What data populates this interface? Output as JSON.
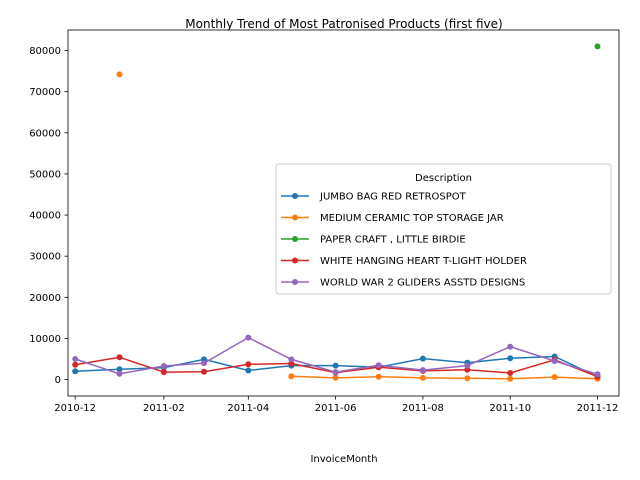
{
  "chart_data": {
    "type": "line",
    "title": "Monthly Trend of Most Patronised Products (first five)",
    "xlabel": "InvoiceMonth",
    "ylabel": "",
    "x": [
      "2010-12",
      "2011-01",
      "2011-02",
      "2011-03",
      "2011-04",
      "2011-05",
      "2011-06",
      "2011-07",
      "2011-08",
      "2011-09",
      "2011-10",
      "2011-11",
      "2011-12"
    ],
    "x_ticks": [
      "2010-12",
      "2011-02",
      "2011-04",
      "2011-06",
      "2011-08",
      "2011-10",
      "2011-12"
    ],
    "y_ticks": [
      0,
      10000,
      20000,
      30000,
      40000,
      50000,
      60000,
      70000,
      80000
    ],
    "xlim": [
      "2010-11-26",
      "2011-12-16"
    ],
    "ylim": [
      -4000,
      85000
    ],
    "grid": false,
    "legend": {
      "title": "Description",
      "position": "center-right"
    },
    "series": [
      {
        "name": "JUMBO BAG RED RETROSPOT",
        "color": "#1f77b4",
        "values": [
          2000,
          2500,
          2900,
          4900,
          2200,
          3400,
          3400,
          3000,
          5100,
          4100,
          5200,
          5600,
          700
        ]
      },
      {
        "name": "MEDIUM CERAMIC TOP STORAGE JAR",
        "color": "#ff7f0e",
        "values": [
          null,
          74200,
          null,
          null,
          null,
          800,
          400,
          700,
          400,
          300,
          200,
          600,
          200
        ]
      },
      {
        "name": "PAPER CRAFT , LITTLE BIRDIE",
        "color": "#2ca02c",
        "values": [
          null,
          null,
          null,
          null,
          null,
          null,
          null,
          null,
          null,
          null,
          null,
          null,
          81000
        ]
      },
      {
        "name": "WHITE HANGING HEART T-LIGHT HOLDER",
        "color": "#d62728",
        "values": [
          3600,
          5400,
          1800,
          1900,
          3700,
          3900,
          1700,
          3000,
          2100,
          2400,
          1600,
          4800,
          700
        ]
      },
      {
        "name": "WORLD WAR 2 GLIDERS ASSTD DESIGNS",
        "color": "#9467bd",
        "values": [
          5000,
          1400,
          3300,
          4000,
          10200,
          4900,
          1800,
          3500,
          2300,
          3400,
          8000,
          4500,
          1300
        ]
      }
    ]
  }
}
